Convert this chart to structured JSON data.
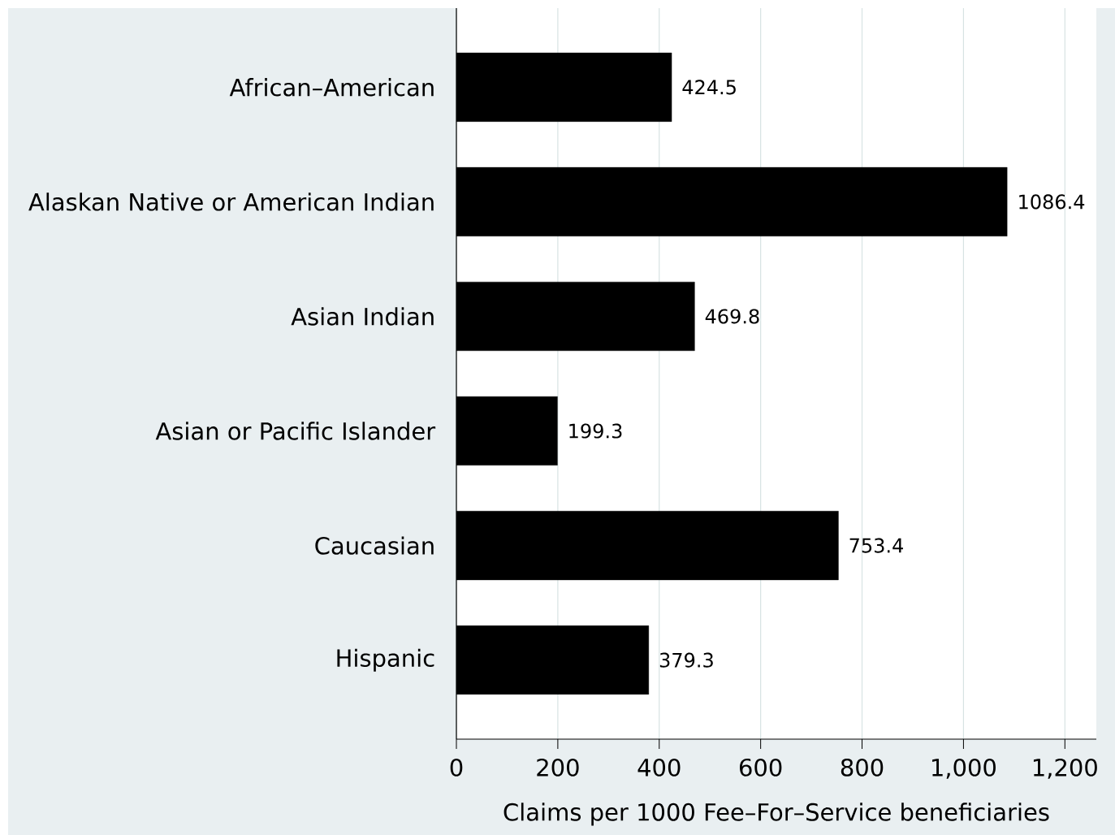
{
  "chart_data": {
    "type": "bar",
    "orientation": "horizontal",
    "categories": [
      "African–American",
      "Alaskan Native or American Indian",
      "Asian Indian",
      "Asian or Pacific Islander",
      "Caucasian",
      "Hispanic"
    ],
    "values": [
      424.5,
      1086.4,
      469.8,
      199.3,
      753.4,
      379.3
    ],
    "value_labels": [
      "424.5",
      "1086.4",
      "469.8",
      "199.3",
      "753.4",
      "379.3"
    ],
    "color": "#000000",
    "xlabel": "Claims per 1000 Fee–For–Service beneficiaries",
    "xlim": [
      0,
      1262
    ],
    "xticks": [
      0,
      200,
      400,
      600,
      800,
      {
        "value": 1000,
        "label": "1,000"
      },
      {
        "value": 1200,
        "label": "1,200"
      }
    ],
    "grid": "x"
  }
}
